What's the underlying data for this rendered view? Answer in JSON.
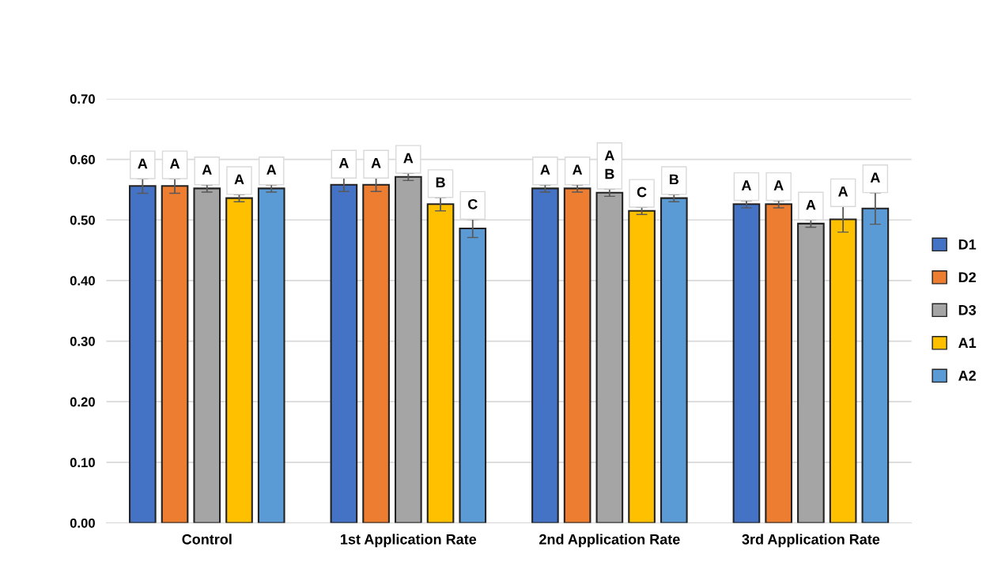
{
  "chart_data": {
    "type": "bar",
    "categories": [
      "Control",
      "1st Application Rate",
      "2nd Application Rate",
      "3rd Application Rate"
    ],
    "series": [
      {
        "name": "D1",
        "color": "#4472c4",
        "values": [
          0.556,
          0.558,
          0.552,
          0.526
        ],
        "errors": [
          0.012,
          0.011,
          0.006,
          0.006
        ],
        "value_labels": [
          "A",
          "A",
          "A",
          "A"
        ]
      },
      {
        "name": "D2",
        "color": "#ed7d31",
        "values": [
          0.556,
          0.558,
          0.552,
          0.526
        ],
        "errors": [
          0.012,
          0.011,
          0.006,
          0.006
        ],
        "value_labels": [
          "A",
          "A",
          "A",
          "A"
        ]
      },
      {
        "name": "D3",
        "color": "#a5a5a5",
        "values": [
          0.552,
          0.571,
          0.545,
          0.494
        ],
        "errors": [
          0.006,
          0.006,
          0.006,
          0.006
        ],
        "value_labels": [
          "A",
          "A",
          "A\nB",
          "A"
        ]
      },
      {
        "name": "A1",
        "color": "#ffc000",
        "values": [
          0.536,
          0.526,
          0.515,
          0.501
        ],
        "errors": [
          0.006,
          0.011,
          0.006,
          0.021
        ],
        "value_labels": [
          "A",
          "B",
          "C",
          "A"
        ]
      },
      {
        "name": "A2",
        "color": "#5b9bd5",
        "values": [
          0.552,
          0.486,
          0.536,
          0.519
        ],
        "errors": [
          0.006,
          0.015,
          0.006,
          0.026
        ],
        "value_labels": [
          "A",
          "C",
          "B",
          "A"
        ]
      }
    ],
    "ylim": [
      0,
      0.7
    ],
    "yticks": [
      {
        "value": 0,
        "label": "0.00"
      },
      {
        "value": 0.1,
        "label": "0.10"
      },
      {
        "value": 0.2,
        "label": "0.20"
      },
      {
        "value": 0.3,
        "label": "0.30"
      },
      {
        "value": 0.4,
        "label": "0.40"
      },
      {
        "value": 0.5,
        "label": "0.50"
      },
      {
        "value": 0.6,
        "label": "0.60"
      },
      {
        "value": 0.7,
        "label": "0.70"
      }
    ],
    "grid": "y",
    "legend": "right"
  }
}
